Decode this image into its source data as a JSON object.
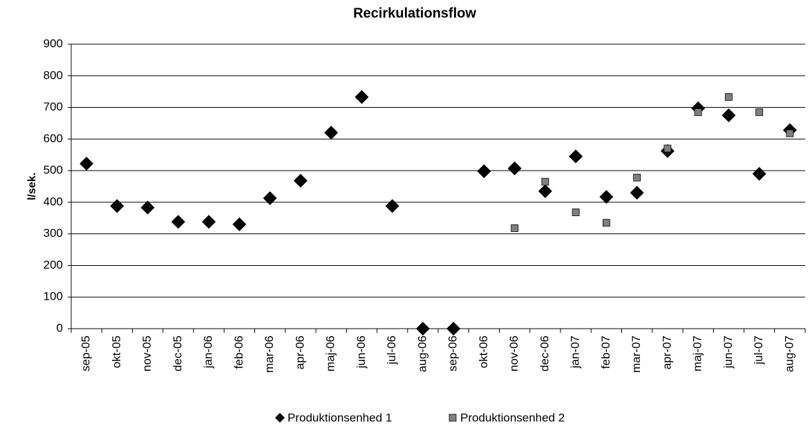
{
  "chart_data": {
    "type": "scatter",
    "title": "Recirkulationsflow",
    "y_label": "l/sek.",
    "categories": [
      "sep-05",
      "okt-05",
      "nov-05",
      "dec-05",
      "jan-06",
      "feb-06",
      "mar-06",
      "apr-06",
      "maj-06",
      "jun-06",
      "jul-06",
      "aug-06",
      "sep-06",
      "okt-06",
      "nov-06",
      "dec-06",
      "jan-07",
      "feb-07",
      "mar-07",
      "apr-07",
      "maj-07",
      "jun-07",
      "jul-07",
      "aug-07"
    ],
    "series": [
      {
        "name": "Produktionsenhed 1",
        "color": "#000000",
        "marker": "diamond",
        "values": [
          522,
          388,
          383,
          338,
          338,
          330,
          413,
          468,
          620,
          733,
          388,
          0,
          0,
          498,
          507,
          435,
          545,
          417,
          430,
          562,
          697,
          675,
          490,
          628
        ]
      },
      {
        "name": "Produktionsenhed 2",
        "color": "#808080",
        "marker": "square",
        "values": [
          null,
          null,
          null,
          null,
          null,
          null,
          null,
          null,
          null,
          null,
          null,
          null,
          null,
          null,
          318,
          465,
          368,
          335,
          478,
          570,
          685,
          733,
          685,
          618
        ]
      }
    ],
    "ylim": [
      0,
      900
    ],
    "yticks": [
      0,
      100,
      200,
      300,
      400,
      500,
      600,
      700,
      800,
      900
    ],
    "grid": true,
    "legend": "bottom"
  }
}
